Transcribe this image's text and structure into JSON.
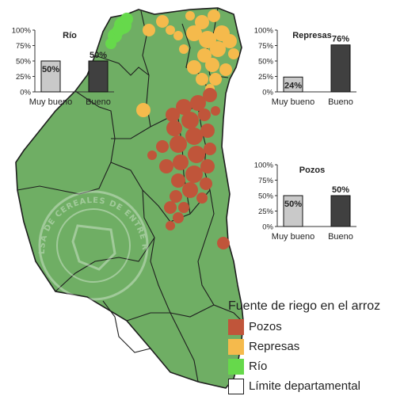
{
  "colors": {
    "map_fill": "#6FAE64",
    "border": "#1e1e1e",
    "pozos": "#C0553A",
    "represas": "#F5BA4C",
    "rio": "#66D94B",
    "bar_light": "#C9C9C9",
    "bar_dark": "#404040"
  },
  "watermark": {
    "text": "BOLSA DE CEREALES DE ENTRE RIOS"
  },
  "legend": {
    "title": "Fuente de riego en el arroz",
    "items": [
      {
        "label": "Pozos",
        "color": "#C0553A"
      },
      {
        "label": "Represas",
        "color": "#F5BA4C"
      },
      {
        "label": "Río",
        "color": "#66D94B"
      },
      {
        "label": "Límite departamental",
        "color": "#FFFFFF"
      }
    ]
  },
  "chart_data": [
    {
      "type": "bar",
      "title": "Río",
      "categories": [
        "Muy bueno",
        "Bueno"
      ],
      "values": [
        50,
        50
      ],
      "data_labels": [
        "50%",
        "50%"
      ],
      "yticks": [
        "100%",
        "75%",
        "50%",
        "25%",
        "0%"
      ],
      "ylim": [
        0,
        100
      ],
      "grid": false
    },
    {
      "type": "bar",
      "title": "Represas",
      "categories": [
        "Muy bueno",
        "Bueno"
      ],
      "values": [
        24,
        76
      ],
      "data_labels": [
        "24%",
        "76%"
      ],
      "yticks": [
        "100%",
        "75%",
        "50%",
        "25%",
        "0%"
      ],
      "ylim": [
        0,
        100
      ],
      "grid": false
    },
    {
      "type": "bar",
      "title": "Pozos",
      "categories": [
        "Muy bueno",
        "Bueno"
      ],
      "values": [
        50,
        50
      ],
      "data_labels": [
        "50%",
        "50%"
      ],
      "yticks": [
        "100%",
        "75%",
        "50%",
        "25%",
        "0%"
      ],
      "ylim": [
        0,
        100
      ],
      "grid": false
    }
  ]
}
